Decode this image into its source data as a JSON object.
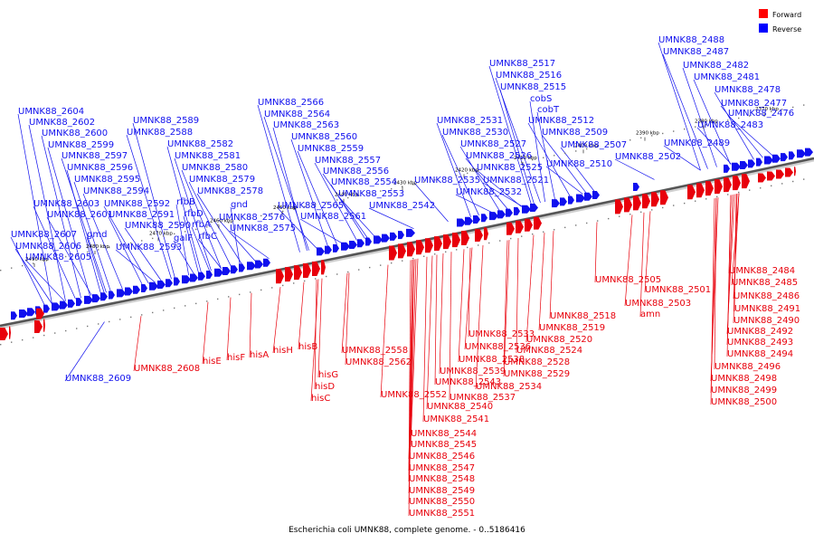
{
  "caption": "Escherichia coli UMNK88, complete genome. - 0..5186416",
  "legend": [
    {
      "label": "Forward",
      "color": "#ff0000"
    },
    {
      "label": "Reverse",
      "color": "#0000ff"
    }
  ],
  "colors": {
    "forward": "#e8000b",
    "reverse": "#1010ee",
    "backbone": "#555555"
  },
  "ticks": [
    "2490 kbp",
    "2480 kbp",
    "2470 kbp",
    "2460 kbp",
    "2450 kbp",
    "2440 kbp",
    "2430 kbp",
    "2420 kbp",
    "2410 kbp",
    "2400 kbp",
    "2390 kbp",
    "2380 kbp",
    "2370 kbp"
  ],
  "reverse_labels": [
    "UMNK88_2604",
    "UMNK88_2602",
    "UMNK88_2600",
    "UMNK88_2599",
    "UMNK88_2597",
    "UMNK88_2596",
    "UMNK88_2595",
    "UMNK88_2594",
    "UMNK88_2603",
    "UMNK88_2601",
    "UMNK88_2607",
    "UMNK88_2606",
    "UMNK88_2605",
    "gmd",
    "UMNK88_2592",
    "UMNK88_2591",
    "UMNK88_2590",
    "UMNK88_2593",
    "UMNK88_2589",
    "UMNK88_2588",
    "UMNK88_2582",
    "UMNK88_2581",
    "UMNK88_2580",
    "UMNK88_2579",
    "UMNK88_2578",
    "rfbB",
    "rfbD",
    "rfbA",
    "galF",
    "rfbC",
    "gnd",
    "UMNK88_2576",
    "UMNK88_2575",
    "UMNK88_2566",
    "UMNK88_2564",
    "UMNK88_2563",
    "UMNK88_2560",
    "UMNK88_2559",
    "UMNK88_2557",
    "UMNK88_2556",
    "UMNK88_2554",
    "UMNK88_2553",
    "UMNK88_2565",
    "UMNK88_2561",
    "UMNK88_2542",
    "UMNK88_2531",
    "UMNK88_2530",
    "UMNK88_2527",
    "UMNK88_2526",
    "UMNK88_2525",
    "UMNK88_2535",
    "UMNK88_2532",
    "UMNK88_2521",
    "UMNK88_2517",
    "UMNK88_2516",
    "UMNK88_2515",
    "cobS",
    "cobT",
    "UMNK88_2512",
    "UMNK88_2509",
    "UMNK88_2507",
    "UMNK88_2510",
    "UMNK88_2502",
    "UMNK88_2488",
    "UMNK88_2487",
    "UMNK88_2482",
    "UMNK88_2481",
    "UMNK88_2478",
    "UMNK88_2477",
    "UMNK88_2476",
    "UMNK88_2483",
    "UMNK88_2489",
    "UMNK88_2609"
  ],
  "forward_labels": [
    "UMNK88_2608",
    "hisE",
    "hisF",
    "hisA",
    "hisH",
    "hisB",
    "hisG",
    "hisD",
    "hisC",
    "UMNK88_2558",
    "UMNK88_2562",
    "UMNK88_2533",
    "UMNK88_2536",
    "UMNK88_2538",
    "UMNK88_2539",
    "UMNK88_2543",
    "UMNK88_2552",
    "UMNK88_2540",
    "UMNK88_2541",
    "UMNK88_2544",
    "UMNK88_2545",
    "UMNK88_2546",
    "UMNK88_2547",
    "UMNK88_2548",
    "UMNK88_2549",
    "UMNK88_2550",
    "UMNK88_2551",
    "UMNK88_2537",
    "UMNK88_2534",
    "UMNK88_2529",
    "UMNK88_2528",
    "UMNK88_2524",
    "UMNK88_2520",
    "UMNK88_2519",
    "UMNK88_2518",
    "UMNK88_2505",
    "UMNK88_2503",
    "UMNK88_2501",
    "amn",
    "UMNK88_2484",
    "UMNK88_2485",
    "UMNK88_2486",
    "UMNK88_2490",
    "UMNK88_2491",
    "UMNK88_2492",
    "UMNK88_2493",
    "UMNK88_2494",
    "UMNK88_2496",
    "UMNK88_2498",
    "UMNK88_2499",
    "UMNK88_2500"
  ]
}
